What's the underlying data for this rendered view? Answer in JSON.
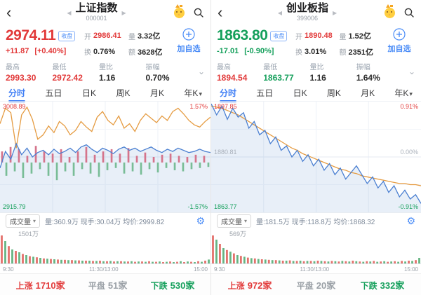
{
  "colors": {
    "up_red": "#e23a3a",
    "down_green": "#16a05c",
    "accent_blue": "#3f7ef5",
    "avg_orange": "#e59b41",
    "price_blue": "#4a7fd1"
  },
  "icons": {
    "back": "‹",
    "prev": "◀",
    "next": "▶",
    "caret_down": "▾",
    "chevron_down": "⌄",
    "gear": "⚙"
  },
  "panels": [
    {
      "title": "上证指数",
      "code": "000001",
      "badge": "收盘",
      "price": "2974.11",
      "change": "+11.87",
      "change_pct": "[+0.40%]",
      "quote": [
        {
          "k": "开",
          "v": "2986.41",
          "c": "red"
        },
        {
          "k": "量",
          "v": "3.32亿",
          "c": "dark"
        },
        {
          "k": "换",
          "v": "0.76%",
          "c": "dark"
        },
        {
          "k": "额",
          "v": "3628亿",
          "c": "dark"
        }
      ],
      "add_label": "加自选",
      "stats": [
        {
          "label": "最高",
          "value": "2993.30",
          "c": "red"
        },
        {
          "label": "最低",
          "value": "2972.42",
          "c": "red"
        },
        {
          "label": "量比",
          "value": "1.16",
          "c": "dark"
        },
        {
          "label": "振幅",
          "value": "0.70%",
          "c": "dark"
        }
      ],
      "tabs": [
        "分时",
        "五日",
        "日K",
        "周K",
        "月K",
        "年K"
      ],
      "active_tab": "分时",
      "chart": {
        "top_label": "3008.89",
        "top_pct": "1.57%",
        "mid_label": "",
        "mid_pct": "",
        "bottom_label": "2915.79",
        "bottom_pct": "-1.57%",
        "avg_line": [
          0.2,
          0.06,
          0.1,
          0.42,
          0.12,
          0.05,
          0.16,
          0.34,
          0.3,
          0.22,
          0.28,
          0.18,
          0.22,
          0.3,
          0.26,
          0.18,
          0.23,
          0.27,
          0.14,
          0.09,
          0.17,
          0.21,
          0.13,
          0.24,
          0.2,
          0.27,
          0.17,
          0.11,
          0.15,
          0.19,
          0.13,
          0.17,
          0.09,
          0.06,
          0.11,
          0.17,
          0.21,
          0.23,
          0.18,
          0.14
        ],
        "price_line": [
          0.6,
          0.45,
          0.52,
          0.38,
          0.48,
          0.42,
          0.5,
          0.46,
          0.44,
          0.48,
          0.43,
          0.47,
          0.45,
          0.42,
          0.46,
          0.41,
          0.39,
          0.43,
          0.46,
          0.42,
          0.44,
          0.47,
          0.43,
          0.41,
          0.44,
          0.42,
          0.45,
          0.43,
          0.41,
          0.44,
          0.46,
          0.43,
          0.45,
          0.42,
          0.44,
          0.46,
          0.45,
          0.43,
          0.45,
          0.46
        ],
        "mid_bars_baseline": 0.55,
        "mid_bars": [
          0.1,
          -0.12,
          0.14,
          -0.08,
          0.12,
          -0.14,
          0.06,
          -0.1,
          0.15,
          -0.06,
          0.1,
          -0.12,
          0.08,
          -0.16,
          0.12,
          -0.08,
          0.05,
          -0.12,
          0.1,
          -0.06,
          0.14,
          -0.1,
          0.07,
          -0.13,
          0.1,
          -0.07,
          0.12,
          -0.05,
          0.08,
          -0.1,
          0.13,
          -0.08,
          0.06,
          -0.11,
          0.09,
          -0.06,
          0.05,
          -0.09,
          0.07,
          -0.05,
          0.08,
          -0.07,
          0.06,
          -0.08,
          0.05,
          -0.06,
          0.07,
          -0.05,
          0.06,
          -0.04
        ]
      },
      "volume_row": {
        "selector": "成交量",
        "info": "量:360.9万 现手:30.04万 均价:2999.82"
      },
      "volume_chart": {
        "max_label": "1501万",
        "x_labels": [
          "9:30",
          "11:30/13:00",
          "15:00"
        ],
        "bars": [
          1.0,
          -0.8,
          0.62,
          -0.5,
          0.45,
          -0.4,
          0.34,
          -0.3,
          0.26,
          -0.24,
          0.22,
          -0.2,
          0.18,
          -0.17,
          0.16,
          -0.15,
          0.14,
          -0.13,
          0.13,
          -0.12,
          0.12,
          -0.11,
          0.11,
          -0.1,
          0.1,
          -0.1,
          0.09,
          -0.09,
          0.1,
          -0.08,
          0.08,
          -0.09,
          0.07,
          -0.08,
          0.08,
          -0.07,
          0.07,
          -0.08,
          0.06,
          -0.07,
          0.07,
          -0.06,
          0.08,
          -0.06,
          0.06,
          -0.07,
          0.05,
          -0.06,
          0.07,
          -0.05,
          0.06,
          -0.08,
          0.05,
          -0.07,
          0.06,
          -0.05,
          0.08,
          -0.06,
          0.1,
          -0.14
        ]
      },
      "breadth": {
        "up_label": "上涨",
        "up_count": "1710家",
        "flat_label": "平盘",
        "flat_count": "51家",
        "down_label": "下跌",
        "down_count": "530家"
      }
    },
    {
      "title": "创业板指",
      "code": "399006",
      "badge": "收盘",
      "price": "1863.80",
      "change": "-17.01",
      "change_pct": "[-0.90%]",
      "quote": [
        {
          "k": "开",
          "v": "1890.48",
          "c": "red"
        },
        {
          "k": "量",
          "v": "1.52亿",
          "c": "dark"
        },
        {
          "k": "换",
          "v": "3.01%",
          "c": "dark"
        },
        {
          "k": "额",
          "v": "2351亿",
          "c": "dark"
        }
      ],
      "add_label": "加自选",
      "stats": [
        {
          "label": "最高",
          "value": "1894.54",
          "c": "red"
        },
        {
          "label": "最低",
          "value": "1863.77",
          "c": "green"
        },
        {
          "label": "量比",
          "value": "1.16",
          "c": "dark"
        },
        {
          "label": "振幅",
          "value": "1.64%",
          "c": "dark"
        }
      ],
      "tabs": [
        "分时",
        "五日",
        "日K",
        "周K",
        "月K",
        "年K"
      ],
      "active_tab": "分时",
      "chart": {
        "top_label": "1897.85",
        "top_pct": "0.91%",
        "mid_label": "1880.81",
        "mid_pct": "0.00%",
        "bottom_label": "1863.77",
        "bottom_pct": "-0.91%",
        "avg_line": [
          0.04,
          0.05,
          0.06,
          0.08,
          0.1,
          0.12,
          0.15,
          0.18,
          0.21,
          0.24,
          0.27,
          0.3,
          0.33,
          0.36,
          0.39,
          0.42,
          0.44,
          0.47,
          0.49,
          0.51,
          0.53,
          0.55,
          0.57,
          0.59,
          0.61,
          0.62,
          0.64,
          0.65,
          0.67,
          0.68,
          0.69,
          0.7,
          0.71,
          0.72,
          0.73,
          0.74,
          0.74,
          0.75,
          0.75,
          0.76
        ],
        "price_line": [
          0.02,
          0.12,
          0.04,
          0.16,
          0.06,
          0.14,
          0.1,
          0.24,
          0.18,
          0.3,
          0.26,
          0.38,
          0.32,
          0.44,
          0.4,
          0.5,
          0.44,
          0.54,
          0.48,
          0.58,
          0.52,
          0.62,
          0.56,
          0.66,
          0.6,
          0.7,
          0.64,
          0.58,
          0.66,
          0.74,
          0.68,
          0.78,
          0.72,
          0.82,
          0.76,
          0.86,
          0.8,
          0.88,
          0.84,
          0.92
        ]
      },
      "volume_row": {
        "selector": "成交量",
        "info": "量:181.5万 现手:118.8万 均价:1868.32"
      },
      "volume_chart": {
        "max_label": "569万",
        "x_labels": [
          "9:30",
          "11:30/13:00",
          "15:00"
        ],
        "bars": [
          1.0,
          -0.85,
          0.7,
          -0.55,
          0.48,
          -0.42,
          0.36,
          -0.3,
          0.27,
          -0.24,
          0.21,
          -0.19,
          0.18,
          -0.16,
          0.15,
          -0.14,
          0.13,
          -0.12,
          0.12,
          -0.11,
          0.1,
          -0.1,
          0.11,
          -0.09,
          0.09,
          -0.1,
          0.08,
          -0.09,
          0.09,
          -0.08,
          0.1,
          -0.09,
          0.08,
          -0.07,
          0.09,
          -0.08,
          0.07,
          -0.09,
          0.08,
          -0.07,
          0.1,
          -0.08,
          0.07,
          -0.06,
          0.08,
          -0.07,
          0.09,
          -0.06,
          0.07,
          -0.08,
          0.06,
          -0.07,
          0.08,
          -0.06,
          0.09,
          -0.07,
          0.1,
          -0.09,
          0.12,
          -0.2
        ]
      },
      "breadth": {
        "up_label": "上涨",
        "up_count": "972家",
        "flat_label": "平盘",
        "flat_count": "20家",
        "down_label": "下跌",
        "down_count": "332家"
      }
    }
  ]
}
